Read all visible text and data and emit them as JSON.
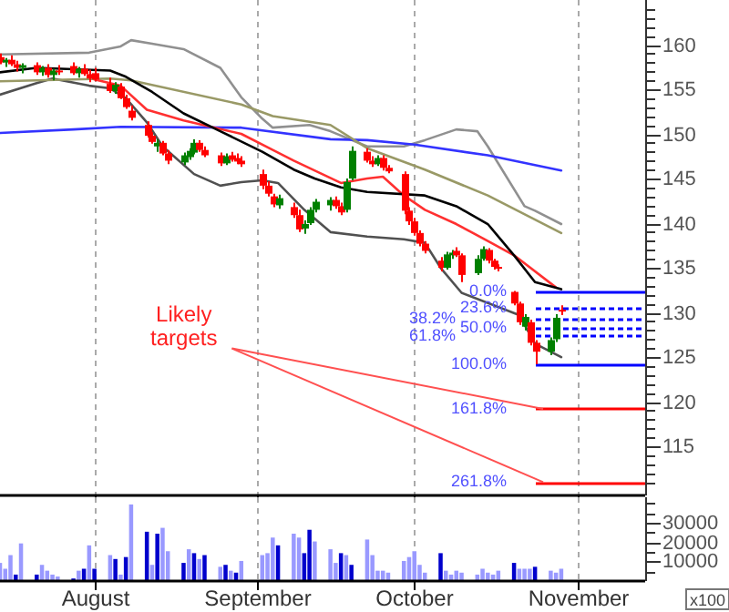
{
  "chart_data": [
    {
      "type": "candlestick",
      "tick_labels": "y",
      "grid": "x",
      "x": [
        "--07-14",
        "--07-15",
        "--07-16",
        "--07-17",
        "--07-18",
        "--07-21",
        "--07-22",
        "--07-23",
        "--07-24",
        "--07-25",
        "--07-28",
        "--07-29",
        "--07-30",
        "--07-31",
        "--08-01",
        "--08-04",
        "--08-05",
        "--08-06",
        "--08-07",
        "--08-08",
        "--08-11",
        "--08-12",
        "--08-13",
        "--08-14",
        "--08-15",
        "--08-18",
        "--08-19",
        "--08-20",
        "--08-21",
        "--08-22",
        "--08-25",
        "--08-26",
        "--08-27",
        "--08-28",
        "--08-29",
        "--09-02",
        "--09-03",
        "--09-04",
        "--09-05",
        "--09-08",
        "--09-09",
        "--09-10",
        "--09-11",
        "--09-12",
        "--09-15",
        "--09-16",
        "--09-17",
        "--09-18",
        "--09-19",
        "--09-22",
        "--09-23",
        "--09-24",
        "--09-25",
        "--09-26",
        "--09-29",
        "--09-30",
        "--10-01",
        "--10-02",
        "--10-03",
        "--10-06",
        "--10-07",
        "--10-08",
        "--10-09",
        "--10-10",
        "--10-13",
        "--10-14",
        "--10-15",
        "--10-16",
        "--10-17",
        "--10-20",
        "--10-21",
        "--10-22",
        "--10-23",
        "--10-24",
        "--10-27",
        "--10-28",
        "--10-29"
      ],
      "ohlc": [
        [
          158.6,
          159.0,
          157.8,
          158.0
        ],
        [
          158.0,
          158.5,
          157.5,
          158.3
        ],
        [
          158.3,
          158.8,
          157.6,
          157.8
        ],
        [
          157.8,
          158.2,
          157.0,
          157.4
        ],
        [
          157.4,
          157.9,
          156.8,
          157.7
        ],
        [
          157.7,
          158.0,
          156.6,
          156.9
        ],
        [
          156.9,
          157.6,
          156.5,
          157.4
        ],
        [
          157.4,
          157.8,
          156.3,
          156.6
        ],
        [
          156.6,
          157.3,
          156.0,
          157.1
        ],
        [
          157.1,
          157.7,
          156.6,
          157.0
        ],
        [
          157.6,
          158.0,
          156.6,
          156.8
        ],
        [
          156.8,
          157.5,
          156.3,
          157.3
        ],
        [
          157.3,
          157.8,
          156.5,
          156.7
        ],
        [
          156.7,
          157.2,
          155.8,
          156.2
        ],
        [
          156.8,
          157.4,
          155.9,
          156.1
        ],
        [
          155.6,
          156.3,
          154.6,
          154.8
        ],
        [
          154.8,
          155.8,
          154.5,
          155.5
        ],
        [
          155.3,
          155.7,
          153.9,
          154.0
        ],
        [
          154.0,
          154.4,
          152.8,
          153.0
        ],
        [
          152.6,
          153.2,
          151.5,
          151.8
        ],
        [
          151.0,
          151.4,
          149.6,
          149.8
        ],
        [
          149.8,
          150.2,
          148.9,
          149.1
        ],
        [
          148.6,
          149.4,
          148.0,
          149.0
        ],
        [
          149.0,
          149.2,
          147.6,
          147.8
        ],
        [
          147.8,
          148.2,
          146.6,
          147.0
        ],
        [
          146.8,
          147.9,
          146.5,
          147.6
        ],
        [
          147.4,
          148.4,
          147.1,
          148.1
        ],
        [
          147.9,
          149.4,
          147.7,
          149.0
        ],
        [
          149.0,
          149.3,
          148.0,
          148.2
        ],
        [
          148.2,
          148.6,
          147.4,
          147.6
        ],
        [
          147.6,
          147.9,
          146.4,
          146.7
        ],
        [
          146.7,
          147.8,
          146.5,
          147.5
        ],
        [
          147.6,
          148.0,
          146.9,
          147.1
        ],
        [
          147.3,
          147.8,
          146.6,
          146.9
        ],
        [
          147.0,
          147.5,
          146.3,
          146.6
        ],
        [
          145.5,
          146.0,
          143.8,
          144.2
        ],
        [
          144.2,
          144.7,
          143.0,
          143.3
        ],
        [
          143.0,
          143.3,
          141.8,
          142.1
        ],
        [
          142.0,
          143.2,
          141.6,
          142.8
        ],
        [
          141.8,
          142.3,
          140.6,
          140.9
        ],
        [
          140.9,
          141.5,
          139.0,
          139.3
        ],
        [
          139.4,
          140.3,
          138.8,
          139.9
        ],
        [
          140.0,
          141.8,
          139.8,
          141.5
        ],
        [
          141.5,
          142.7,
          141.2,
          142.4
        ],
        [
          142.0,
          142.9,
          141.4,
          142.6
        ],
        [
          142.6,
          143.0,
          141.6,
          141.9
        ],
        [
          141.9,
          142.3,
          140.9,
          141.2
        ],
        [
          141.5,
          145.0,
          141.2,
          144.6
        ],
        [
          145.0,
          148.6,
          144.8,
          148.1
        ],
        [
          148.0,
          148.4,
          146.8,
          147.0
        ],
        [
          147.0,
          147.5,
          146.3,
          146.6
        ],
        [
          146.6,
          147.6,
          146.4,
          147.3
        ],
        [
          147.3,
          147.6,
          145.9,
          146.2
        ],
        [
          146.2,
          146.5,
          145.6,
          145.8
        ],
        [
          145.5,
          145.8,
          141.0,
          141.4
        ],
        [
          141.4,
          141.8,
          139.8,
          140.2
        ],
        [
          140.2,
          140.6,
          138.6,
          138.9
        ],
        [
          138.9,
          139.2,
          137.4,
          137.7
        ],
        [
          137.7,
          138.0,
          136.6,
          136.9
        ],
        [
          135.8,
          136.2,
          134.6,
          135.0
        ],
        [
          135.0,
          136.8,
          134.8,
          136.5
        ],
        [
          136.4,
          137.0,
          136.0,
          136.7
        ],
        [
          136.9,
          137.3,
          136.2,
          136.4
        ],
        [
          136.4,
          136.6,
          133.4,
          134.2
        ],
        [
          134.4,
          136.4,
          134.2,
          136.0
        ],
        [
          136.0,
          137.4,
          135.8,
          137.1
        ],
        [
          137.0,
          137.2,
          135.5,
          135.8
        ],
        [
          135.8,
          136.0,
          134.8,
          135.1
        ],
        [
          135.1,
          135.4,
          134.6,
          134.9
        ],
        [
          132.3,
          132.4,
          130.8,
          131.0
        ],
        [
          131.0,
          131.2,
          128.6,
          128.9
        ],
        [
          128.4,
          129.8,
          128.0,
          129.5
        ],
        [
          128.9,
          129.2,
          126.3,
          126.6
        ],
        [
          126.6,
          126.9,
          124.2,
          125.6
        ],
        [
          125.6,
          127.2,
          125.2,
          126.9
        ],
        [
          127.0,
          129.8,
          126.7,
          129.4
        ],
        [
          130.3,
          130.8,
          129.7,
          130.1
        ]
      ],
      "colors": [
        "#ff0000",
        "#008000",
        "#ff0000",
        "#ff0000",
        "#008000",
        "#ff0000",
        "#008000",
        "#ff0000",
        "#008000",
        "#ff0000",
        "#ff0000",
        "#008000",
        "#ff0000",
        "#ff0000",
        "#ff0000",
        "#ff0000",
        "#008000",
        "#ff0000",
        "#ff0000",
        "#ff0000",
        "#ff0000",
        "#ff0000",
        "#008000",
        "#ff0000",
        "#ff0000",
        "#008000",
        "#008000",
        "#008000",
        "#ff0000",
        "#ff0000",
        "#ff0000",
        "#008000",
        "#ff0000",
        "#ff0000",
        "#ff0000",
        "#ff0000",
        "#ff0000",
        "#ff0000",
        "#008000",
        "#ff0000",
        "#ff0000",
        "#008000",
        "#008000",
        "#008000",
        "#008000",
        "#ff0000",
        "#ff0000",
        "#008000",
        "#008000",
        "#ff0000",
        "#ff0000",
        "#008000",
        "#ff0000",
        "#ff0000",
        "#ff0000",
        "#ff0000",
        "#ff0000",
        "#ff0000",
        "#ff0000",
        "#ff0000",
        "#008000",
        "#008000",
        "#ff0000",
        "#ff0000",
        "#008000",
        "#008000",
        "#ff0000",
        "#ff0000",
        "#ff0000",
        "#ff0000",
        "#ff0000",
        "#008000",
        "#ff0000",
        "#ff0000",
        "#008000",
        "#008000",
        "#ff0000"
      ],
      "series": [
        {
          "type": "line",
          "color": "#000000",
          "x": [
            "--07-14",
            "--07-21",
            "--08-04",
            "--08-07",
            "--08-12",
            "--08-18",
            "--08-25",
            "--09-02",
            "--09-08",
            "--09-12",
            "--09-17",
            "--09-22",
            "--10-03",
            "--10-09",
            "--10-15",
            "--10-20",
            "--10-24",
            "--10-29"
          ],
          "values": [
            156.9,
            157.4,
            157.1,
            156.4,
            154.7,
            152.3,
            150.3,
            148.0,
            146.0,
            145.0,
            144.0,
            143.5,
            143.1,
            141.9,
            139.9,
            136.4,
            133.4,
            132.6
          ]
        },
        {
          "type": "line",
          "color": "#ff3030",
          "x": [
            "--08-01",
            "--08-06",
            "--08-11",
            "--08-18",
            "--08-29",
            "--09-04",
            "--09-08",
            "--09-17",
            "--09-22",
            "--09-25",
            "--09-29",
            "--10-03",
            "--10-09",
            "--10-15",
            "--10-20",
            "--10-28"
          ],
          "values": [
            156.1,
            155.4,
            152.7,
            151.5,
            150.0,
            148.2,
            147.0,
            144.5,
            145.0,
            145.2,
            143.1,
            141.5,
            139.9,
            138.0,
            136.4,
            132.8
          ]
        },
        {
          "type": "line",
          "color": "#999966",
          "x": [
            "--07-14",
            "--08-04",
            "--08-08",
            "--08-29",
            "--09-04",
            "--09-15",
            "--09-22",
            "--10-03",
            "--10-15",
            "--10-29"
          ],
          "values": [
            155.9,
            156.2,
            156.0,
            153.3,
            152.0,
            151.0,
            148.4,
            146.0,
            143.1,
            138.9
          ]
        },
        {
          "type": "line",
          "color": "#3333ff",
          "x": [
            "--07-14",
            "--07-28",
            "--08-06",
            "--08-29",
            "--09-15",
            "--09-22",
            "--10-01",
            "--10-15",
            "--10-29"
          ],
          "values": [
            150.1,
            150.5,
            150.8,
            150.7,
            149.4,
            149.3,
            148.8,
            147.6,
            145.9
          ]
        },
        {
          "type": "line",
          "color": "#909090",
          "x": [
            "--07-14",
            "--07-31",
            "--08-06",
            "--08-08",
            "--08-12",
            "--08-18",
            "--08-25",
            "--08-29",
            "--09-02",
            "--09-04",
            "--09-11",
            "--09-15",
            "--09-22",
            "--09-29",
            "--10-03",
            "--10-09",
            "--10-13",
            "--10-15",
            "--10-22",
            "--10-24",
            "--10-29"
          ],
          "values": [
            158.9,
            159.1,
            159.8,
            160.5,
            160.1,
            159.5,
            157.4,
            154.1,
            151.7,
            150.7,
            151.0,
            150.3,
            148.6,
            148.6,
            149.3,
            150.5,
            150.3,
            148.6,
            141.9,
            141.4,
            139.9
          ]
        },
        {
          "type": "line",
          "color": "#505050",
          "x": [
            "--07-14",
            "--07-21",
            "--07-24",
            "--07-31",
            "--08-04",
            "--08-07",
            "--08-11",
            "--08-14",
            "--08-20",
            "--08-25",
            "--08-29",
            "--09-02",
            "--09-05",
            "--09-10",
            "--09-15",
            "--09-22",
            "--09-29",
            "--10-03",
            "--10-06",
            "--10-10",
            "--10-21",
            "--10-24",
            "--10-29"
          ],
          "values": [
            154.4,
            155.7,
            156.2,
            155.4,
            155.1,
            154.0,
            151.3,
            148.6,
            145.5,
            144.2,
            144.6,
            144.8,
            144.5,
            141.5,
            139.0,
            138.5,
            138.2,
            137.8,
            135.0,
            132.2,
            129.7,
            126.5,
            125.0
          ]
        }
      ],
      "xlim": [
        "--07-14",
        "--11-14"
      ],
      "xticks": [
        {
          "value": "--08-01",
          "label": null
        },
        {
          "value": "--09-01",
          "label": null
        },
        {
          "value": "--10-01",
          "label": null
        },
        {
          "value": "--11-01",
          "label": null
        }
      ],
      "ylim": [
        109.5,
        165
      ],
      "yticks": [
        {
          "value": 111,
          "label": null
        },
        {
          "value": 112,
          "label": null
        },
        {
          "value": 113,
          "label": null
        },
        {
          "value": 114,
          "label": null
        },
        115,
        {
          "value": 116,
          "label": null
        },
        {
          "value": 117,
          "label": null
        },
        {
          "value": 118,
          "label": null
        },
        {
          "value": 119,
          "label": null
        },
        120,
        {
          "value": 121,
          "label": null
        },
        {
          "value": 122,
          "label": null
        },
        {
          "value": 123,
          "label": null
        },
        {
          "value": 124,
          "label": null
        },
        125,
        {
          "value": 126,
          "label": null
        },
        {
          "value": 127,
          "label": null
        },
        {
          "value": 128,
          "label": null
        },
        {
          "value": 129,
          "label": null
        },
        130,
        {
          "value": 131,
          "label": null
        },
        {
          "value": 132,
          "label": null
        },
        {
          "value": 133,
          "label": null
        },
        {
          "value": 134,
          "label": null
        },
        135,
        {
          "value": 136,
          "label": null
        },
        {
          "value": 137,
          "label": null
        },
        {
          "value": 138,
          "label": null
        },
        {
          "value": 139,
          "label": null
        },
        140,
        {
          "value": 141,
          "label": null
        },
        {
          "value": 142,
          "label": null
        },
        {
          "value": 143,
          "label": null
        },
        {
          "value": 144,
          "label": null
        },
        145,
        {
          "value": 146,
          "label": null
        },
        {
          "value": 147,
          "label": null
        },
        {
          "value": 148,
          "label": null
        },
        {
          "value": 149,
          "label": null
        },
        150,
        {
          "value": 151,
          "label": null
        },
        {
          "value": 152,
          "label": null
        },
        {
          "value": 153,
          "label": null
        },
        {
          "value": 154,
          "label": null
        },
        155,
        {
          "value": 156,
          "label": null
        },
        {
          "value": 157,
          "label": null
        },
        {
          "value": 158,
          "label": null
        },
        {
          "value": 159,
          "label": null
        },
        160,
        {
          "value": 161,
          "label": null
        },
        {
          "value": 162,
          "label": null
        },
        {
          "value": 163,
          "label": null
        },
        {
          "value": 164,
          "label": null
        }
      ],
      "ref_lines": [
        {
          "axis": "y",
          "value": 132.4,
          "color": "#0000ff",
          "line_style": "solid"
        },
        {
          "axis": "y",
          "value": 130.5,
          "color": "#0000ff",
          "line_style": "dashed"
        },
        {
          "axis": "y",
          "value": 129.3,
          "color": "#0000ff",
          "line_style": "dashed"
        },
        {
          "axis": "y",
          "value": 128.3,
          "color": "#0000ff",
          "line_style": "dashed"
        },
        {
          "axis": "y",
          "value": 127.4,
          "color": "#0000ff",
          "line_style": "dashed"
        },
        {
          "axis": "y",
          "value": 124.2,
          "color": "#0000ff",
          "line_style": "solid"
        },
        {
          "axis": "y",
          "value": 119.2,
          "color": "#ff0000",
          "line_style": "solid"
        },
        {
          "axis": "y",
          "value": 111.0,
          "color": "#ff0000",
          "line_style": "solid"
        }
      ],
      "annotations": [
        "0.0%",
        "23.6%",
        "38.2%",
        "50.0%",
        "61.8%",
        "100.0%",
        "161.8%",
        "261.8%",
        "Likely targets"
      ]
    },
    {
      "type": "bar",
      "grid": "x",
      "x": [
        "--07-14",
        "--07-15",
        "--07-16",
        "--07-17",
        "--07-18",
        "--07-21",
        "--07-22",
        "--07-23",
        "--07-24",
        "--07-25",
        "--07-28",
        "--07-29",
        "--07-30",
        "--07-31",
        "--08-01",
        "--08-04",
        "--08-05",
        "--08-06",
        "--08-07",
        "--08-08",
        "--08-11",
        "--08-12",
        "--08-13",
        "--08-14",
        "--08-15",
        "--08-18",
        "--08-19",
        "--08-20",
        "--08-21",
        "--08-22",
        "--08-25",
        "--08-26",
        "--08-27",
        "--08-28",
        "--08-29",
        "--09-02",
        "--09-03",
        "--09-04",
        "--09-05",
        "--09-08",
        "--09-09",
        "--09-10",
        "--09-11",
        "--09-12",
        "--09-15",
        "--09-16",
        "--09-17",
        "--09-18",
        "--09-19",
        "--09-22",
        "--09-23",
        "--09-24",
        "--09-25",
        "--09-26",
        "--09-29",
        "--09-30",
        "--10-01",
        "--10-02",
        "--10-03",
        "--10-06",
        "--10-07",
        "--10-08",
        "--10-09",
        "--10-10",
        "--10-13",
        "--10-14",
        "--10-15",
        "--10-16",
        "--10-17",
        "--10-20",
        "--10-21",
        "--10-22",
        "--10-23",
        "--10-24",
        "--10-27",
        "--10-28",
        "--10-29"
      ],
      "values": [
        9000,
        6000,
        13000,
        3000,
        19000,
        3000,
        8000,
        5000,
        3000,
        2000,
        1000,
        5000,
        6000,
        18000,
        6000,
        13000,
        11000,
        3000,
        12000,
        39000,
        25000,
        8000,
        24000,
        27000,
        15000,
        9000,
        16000,
        14000,
        11000,
        13000,
        7000,
        8000,
        5000,
        4000,
        10000,
        13000,
        14000,
        22000,
        18000,
        24000,
        22000,
        14000,
        26000,
        20000,
        16000,
        9000,
        14000,
        13000,
        8000,
        21000,
        13000,
        5000,
        5000,
        4000,
        10000,
        12000,
        15000,
        8000,
        4000,
        14000,
        5000,
        3000,
        5000,
        4000,
        3000,
        6000,
        4000,
        3000,
        5000,
        9000,
        6000,
        6000,
        6000,
        7000,
        5000,
        4000,
        6000
      ],
      "colors": [
        "#9999ff",
        "#9999ff",
        "#9999ff",
        "#0000cc",
        "#9999ff",
        "#0000cc",
        "#9999ff",
        "#9999ff",
        "#9999ff",
        "#9999ff",
        "#0000cc",
        "#9999ff",
        "#0000cc",
        "#9999ff",
        "#0000cc",
        "#9999ff",
        "#0000cc",
        "#9999ff",
        "#0000cc",
        "#9999ff",
        "#0000cc",
        "#9999ff",
        "#0000cc",
        "#9999ff",
        "#9999ff",
        "#0000cc",
        "#9999ff",
        "#0000cc",
        "#9999ff",
        "#0000cc",
        "#9999ff",
        "#0000cc",
        "#9999ff",
        "#0000cc",
        "#9999ff",
        "#9999ff",
        "#9999ff",
        "#9999ff",
        "#0000cc",
        "#9999ff",
        "#9999ff",
        "#0000cc",
        "#0000cc",
        "#9999ff",
        "#9999ff",
        "#9999ff",
        "#0000cc",
        "#9999ff",
        "#0000cc",
        "#9999ff",
        "#9999ff",
        "#9999ff",
        "#9999ff",
        "#9999ff",
        "#9999ff",
        "#9999ff",
        "#9999ff",
        "#9999ff",
        "#9999ff",
        "#0000cc",
        "#9999ff",
        "#9999ff",
        "#9999ff",
        "#9999ff",
        "#9999ff",
        "#9999ff",
        "#9999ff",
        "#9999ff",
        "#9999ff",
        "#0000cc",
        "#9999ff",
        "#9999ff",
        "#9999ff",
        "#0000cc",
        "#9999ff",
        "#9999ff",
        "#9999ff"
      ],
      "xlim": [
        "--07-14",
        "--11-14"
      ],
      "xticks": [
        {
          "value": "--08-01",
          "label": "August"
        },
        {
          "value": "--09-01",
          "label": "September"
        },
        {
          "value": "--10-01",
          "label": "October"
        },
        {
          "value": "--11-01",
          "label": "November"
        }
      ],
      "ylim": [
        0,
        43000
      ],
      "yticks": [
        {
          "value": 5000,
          "label": null
        },
        10000,
        {
          "value": 15000,
          "label": null
        },
        20000,
        {
          "value": 25000,
          "label": null
        },
        30000,
        {
          "value": 35000,
          "label": null
        },
        {
          "value": 40000,
          "label": null
        }
      ],
      "annotations": [
        "x100"
      ]
    }
  ]
}
